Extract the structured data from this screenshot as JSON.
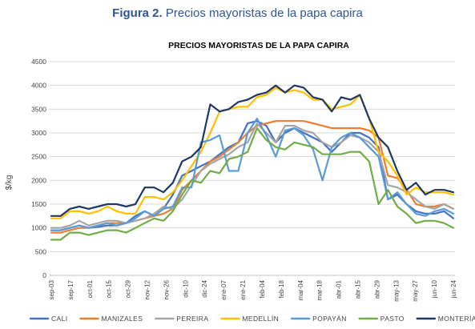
{
  "figure": {
    "number": "Figura 2.",
    "caption": "Precios mayoristas de la papa capira"
  },
  "chart_data": {
    "type": "line",
    "title": "PRECIOS MAYORISTAS DE LA PAPA CAPIRA",
    "xlabel": "",
    "ylabel": "$/kg",
    "ylim": [
      0,
      4500
    ],
    "yticks": [
      "0",
      "500",
      "1000",
      "1500",
      "2000",
      "2500",
      "3000",
      "3500",
      "4000",
      "4500"
    ],
    "grid": true,
    "legend_position": "bottom",
    "x_tick_labels": [
      "sep-03",
      "sep-17",
      "oct-01",
      "oct-15",
      "oct-29",
      "nov-12",
      "nov-26",
      "dic-10",
      "dic-24",
      "ene-07",
      "ene-21",
      "feb-04",
      "feb-18",
      "mar-04",
      "mar-18",
      "abr-01",
      "abr-15",
      "abr-29",
      "may-13",
      "may-27",
      "jun-10",
      "jun-24"
    ],
    "series": [
      {
        "name": "CALI",
        "color": "#4472c4",
        "values": [
          950,
          950,
          1000,
          1050,
          1000,
          1020,
          1050,
          1050,
          1100,
          1250,
          1350,
          1250,
          1400,
          1700,
          2100,
          2200,
          2300,
          2400,
          2550,
          2700,
          2800,
          3200,
          3250,
          3150,
          2800,
          3000,
          3100,
          3000,
          2900,
          2800,
          2600,
          2800,
          3000,
          3000,
          2900,
          2700,
          1600,
          1700,
          1500,
          1350,
          1300,
          1300,
          1350,
          1200
        ]
      },
      {
        "name": "MANIZALES",
        "color": "#ed7d31",
        "values": [
          900,
          900,
          950,
          1000,
          1000,
          1050,
          1100,
          1100,
          1100,
          1150,
          1200,
          1250,
          1300,
          1400,
          1800,
          2000,
          2200,
          2400,
          2500,
          2650,
          2800,
          3000,
          3150,
          3200,
          3250,
          3250,
          3250,
          3250,
          3200,
          3150,
          3100,
          3100,
          3100,
          3100,
          3050,
          2900,
          2100,
          2050,
          1800,
          1500,
          1450,
          1450,
          1500,
          1400
        ]
      },
      {
        "name": "PEREIRA",
        "color": "#a5a5a5",
        "values": [
          1000,
          1000,
          1050,
          1150,
          1050,
          1100,
          1150,
          1150,
          1100,
          1150,
          1200,
          1300,
          1450,
          1400,
          1600,
          1900,
          2200,
          2350,
          2450,
          2550,
          2700,
          2800,
          3200,
          3000,
          2800,
          3150,
          3150,
          3050,
          3000,
          2800,
          2700,
          2800,
          2950,
          2900,
          2800,
          2600,
          1900,
          1850,
          1750,
          1600,
          1450,
          1400,
          1500,
          1400
        ]
      },
      {
        "name": "MEDELLÍN",
        "color": "#ffc000",
        "values": [
          1200,
          1200,
          1350,
          1350,
          1300,
          1350,
          1450,
          1350,
          1300,
          1300,
          1650,
          1650,
          1600,
          1750,
          2000,
          2300,
          2600,
          3000,
          3450,
          3500,
          3550,
          3550,
          3750,
          3800,
          3950,
          3850,
          3900,
          3850,
          3700,
          3700,
          3500,
          3550,
          3600,
          3800,
          3300,
          2600,
          2400,
          2100,
          1700,
          1850,
          1750,
          1750,
          1750,
          1700
        ]
      },
      {
        "name": "POPAYÁN",
        "color": "#5b9bd5",
        "values": [
          950,
          950,
          1000,
          1050,
          1000,
          1050,
          1100,
          1050,
          1100,
          1200,
          1350,
          1250,
          1400,
          1450,
          1850,
          1850,
          2800,
          2850,
          2950,
          2200,
          2200,
          3000,
          3300,
          2950,
          2500,
          3050,
          3100,
          2950,
          2650,
          2000,
          2700,
          2900,
          3000,
          2900,
          2700,
          2500,
          1600,
          1750,
          1500,
          1300,
          1250,
          1350,
          1400,
          1300
        ]
      },
      {
        "name": "PASTO",
        "color": "#70ad47",
        "values": [
          750,
          750,
          900,
          900,
          850,
          900,
          950,
          950,
          900,
          1000,
          1100,
          1200,
          1150,
          1350,
          1700,
          2000,
          1950,
          2200,
          2150,
          2450,
          2500,
          2600,
          3100,
          2850,
          2700,
          2650,
          2800,
          2750,
          2700,
          2550,
          2550,
          2550,
          2600,
          2600,
          2400,
          1500,
          1800,
          1450,
          1300,
          1100,
          1150,
          1150,
          1100,
          1000
        ]
      },
      {
        "name": "MONTERÍA",
        "color": "#203864",
        "values": [
          1250,
          1250,
          1400,
          1450,
          1400,
          1450,
          1500,
          1500,
          1450,
          1500,
          1850,
          1850,
          1750,
          1950,
          2400,
          2500,
          2700,
          3600,
          3450,
          3500,
          3650,
          3700,
          3800,
          3850,
          4000,
          3850,
          4000,
          3950,
          3750,
          3700,
          3450,
          3750,
          3700,
          3800,
          3300,
          2900,
          2700,
          2200,
          1800,
          1950,
          1700,
          1800,
          1800,
          1750
        ]
      }
    ]
  }
}
